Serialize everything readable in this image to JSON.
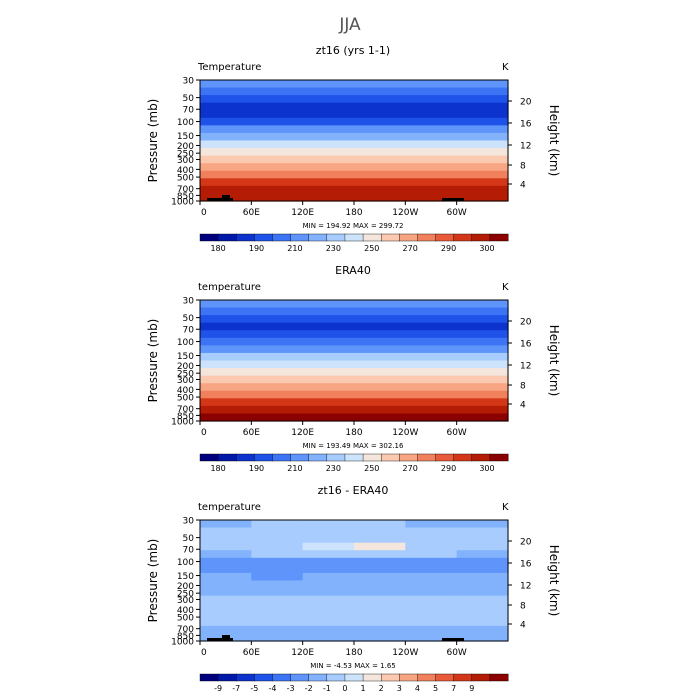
{
  "title": "JJA",
  "chart_data": [
    {
      "type": "heatmap",
      "title": "zt16 (yrs 1-1)",
      "field_label": "Temperature",
      "units": "K",
      "ylabel": "Pressure (mb)",
      "ylabel_right": "Height (km)",
      "x_ticks": [
        "0",
        "60E",
        "120E",
        "180",
        "120W",
        "60W"
      ],
      "y_ticks": [
        "30",
        "50",
        "70",
        "100",
        "150",
        "200",
        "250",
        "300",
        "400",
        "500",
        "700",
        "850",
        "1000"
      ],
      "height_ticks": [
        "20",
        "16",
        "12",
        "8",
        "4"
      ],
      "stats": "MIN = 194.92   MAX = 299.72",
      "colorbar_labels": [
        "180",
        "190",
        "210",
        "230",
        "250",
        "270",
        "290",
        "300"
      ],
      "colorbar_colors": [
        "#00007f",
        "#0019a8",
        "#0d33cf",
        "#1f52e8",
        "#3c74f5",
        "#5f95fb",
        "#83b2fc",
        "#a7ccfd",
        "#cde3fb",
        "#f4e6dc",
        "#fbc9b0",
        "#f7a583",
        "#f1815d",
        "#e85a3a",
        "#d43717",
        "#b51c06",
        "#8b0000"
      ],
      "values": [
        [
          0.32
        ],
        [
          0.27
        ],
        [
          0.2
        ],
        [
          0.13
        ],
        [
          0.15
        ],
        [
          0.22
        ],
        [
          0.31
        ],
        [
          0.4
        ],
        [
          0.49
        ],
        [
          0.56
        ],
        [
          0.62
        ],
        [
          0.68
        ],
        [
          0.76
        ],
        [
          0.84
        ],
        [
          0.9
        ],
        [
          0.94
        ]
      ]
    },
    {
      "type": "heatmap",
      "title": "ERA40",
      "field_label": "temperature",
      "units": "K",
      "ylabel": "Pressure (mb)",
      "ylabel_right": "Height (km)",
      "x_ticks": [
        "0",
        "60E",
        "120E",
        "180",
        "120W",
        "60W"
      ],
      "y_ticks": [
        "30",
        "50",
        "70",
        "100",
        "150",
        "200",
        "250",
        "300",
        "400",
        "500",
        "700",
        "850",
        "1000"
      ],
      "height_ticks": [
        "20",
        "16",
        "12",
        "8",
        "4"
      ],
      "stats": "MIN = 193.49   MAX = 302.16",
      "colorbar_labels": [
        "180",
        "190",
        "210",
        "230",
        "250",
        "270",
        "290",
        "300"
      ],
      "colorbar_colors": [
        "#00007f",
        "#0019a8",
        "#0d33cf",
        "#1f52e8",
        "#3c74f5",
        "#5f95fb",
        "#83b2fc",
        "#a7ccfd",
        "#cde3fb",
        "#f4e6dc",
        "#fbc9b0",
        "#f7a583",
        "#f1815d",
        "#e85a3a",
        "#d43717",
        "#b51c06",
        "#8b0000"
      ],
      "values": [
        [
          0.32
        ],
        [
          0.27
        ],
        [
          0.21
        ],
        [
          0.15
        ],
        [
          0.18
        ],
        [
          0.25
        ],
        [
          0.33
        ],
        [
          0.42
        ],
        [
          0.5
        ],
        [
          0.56
        ],
        [
          0.62
        ],
        [
          0.68
        ],
        [
          0.76
        ],
        [
          0.84
        ],
        [
          0.9
        ],
        [
          0.95
        ]
      ]
    },
    {
      "type": "heatmap",
      "title": "zt16 - ERA40",
      "field_label": "temperature",
      "units": "K",
      "ylabel": "Pressure (mb)",
      "ylabel_right": "Height (km)",
      "x_ticks": [
        "0",
        "60E",
        "120E",
        "180",
        "120W",
        "60W"
      ],
      "y_ticks": [
        "30",
        "50",
        "70",
        "100",
        "150",
        "200",
        "250",
        "300",
        "400",
        "500",
        "700",
        "850",
        "1000"
      ],
      "height_ticks": [
        "20",
        "16",
        "12",
        "8",
        "4"
      ],
      "stats": "MIN =  -4.53   MAX =   1.65",
      "colorbar_labels": [
        "-9",
        "-7",
        "-5",
        "-4",
        "-3",
        "-2",
        "-1",
        "0",
        "1",
        "2",
        "3",
        "4",
        "5",
        "7",
        "9"
      ],
      "colorbar_colors": [
        "#00007f",
        "#0019a8",
        "#0d33cf",
        "#1f52e8",
        "#3c74f5",
        "#5f95fb",
        "#83b2fc",
        "#a7ccfd",
        "#cde3fb",
        "#f4e6dc",
        "#fbc9b0",
        "#f7a583",
        "#f1815d",
        "#e85a3a",
        "#d43717",
        "#b51c06",
        "#8b0000"
      ],
      "values": [
        [
          0.4,
          0.42,
          0.43,
          0.43,
          0.41,
          0.4
        ],
        [
          0.42,
          0.43,
          0.44,
          0.44,
          0.43,
          0.42
        ],
        [
          0.44,
          0.45,
          0.46,
          0.46,
          0.45,
          0.44
        ],
        [
          0.43,
          0.45,
          0.52,
          0.55,
          0.47,
          0.43
        ],
        [
          0.41,
          0.42,
          0.44,
          0.44,
          0.42,
          0.41
        ],
        [
          0.34,
          0.33,
          0.35,
          0.35,
          0.34,
          0.34
        ],
        [
          0.33,
          0.3,
          0.34,
          0.33,
          0.33,
          0.33
        ],
        [
          0.36,
          0.35,
          0.36,
          0.36,
          0.36,
          0.36
        ],
        [
          0.38,
          0.38,
          0.39,
          0.38,
          0.38,
          0.37
        ],
        [
          0.39,
          0.4,
          0.4,
          0.4,
          0.4,
          0.39
        ],
        [
          0.42,
          0.42,
          0.42,
          0.42,
          0.42,
          0.42
        ],
        [
          0.43,
          0.43,
          0.43,
          0.43,
          0.43,
          0.43
        ],
        [
          0.43,
          0.43,
          0.43,
          0.43,
          0.43,
          0.43
        ],
        [
          0.42,
          0.42,
          0.42,
          0.42,
          0.42,
          0.42
        ],
        [
          0.41,
          0.41,
          0.41,
          0.41,
          0.41,
          0.41
        ],
        [
          0.4,
          0.4,
          0.4,
          0.4,
          0.4,
          0.4
        ]
      ]
    }
  ]
}
